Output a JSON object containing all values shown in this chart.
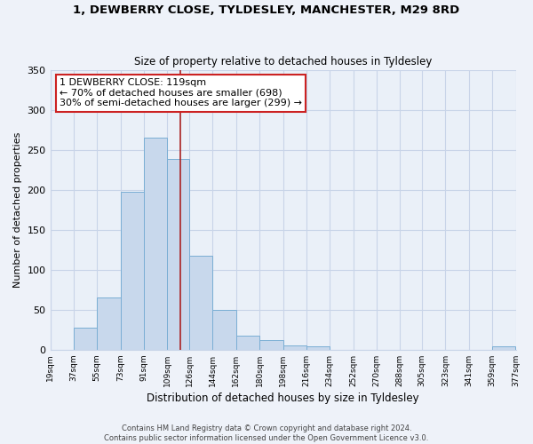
{
  "title": "1, DEWBERRY CLOSE, TYLDESLEY, MANCHESTER, M29 8RD",
  "subtitle": "Size of property relative to detached houses in Tyldesley",
  "xlabel": "Distribution of detached houses by size in Tyldesley",
  "ylabel": "Number of detached properties",
  "bar_color": "#c8d8ec",
  "bar_edge_color": "#7aaed4",
  "bin_labels": [
    "19sqm",
    "37sqm",
    "55sqm",
    "73sqm",
    "91sqm",
    "109sqm",
    "126sqm",
    "144sqm",
    "162sqm",
    "180sqm",
    "198sqm",
    "216sqm",
    "234sqm",
    "252sqm",
    "270sqm",
    "288sqm",
    "305sqm",
    "323sqm",
    "341sqm",
    "359sqm",
    "377sqm"
  ],
  "bar_heights": [
    0,
    28,
    65,
    197,
    265,
    238,
    117,
    50,
    18,
    12,
    5,
    4,
    0,
    0,
    0,
    0,
    0,
    0,
    0,
    4,
    0
  ],
  "bin_edges": [
    19,
    37,
    55,
    73,
    91,
    109,
    126,
    144,
    162,
    180,
    198,
    216,
    234,
    252,
    270,
    288,
    305,
    323,
    341,
    359,
    377
  ],
  "vline_x": 119,
  "vline_color": "#aa2222",
  "ylim": [
    0,
    350
  ],
  "yticks": [
    0,
    50,
    100,
    150,
    200,
    250,
    300,
    350
  ],
  "annotation_text": "1 DEWBERRY CLOSE: 119sqm\n← 70% of detached houses are smaller (698)\n30% of semi-detached houses are larger (299) →",
  "footer_line1": "Contains HM Land Registry data © Crown copyright and database right 2024.",
  "footer_line2": "Contains public sector information licensed under the Open Government Licence v3.0.",
  "background_color": "#eef2f9",
  "plot_bg_color": "#eaf0f8",
  "grid_color": "#c8d4e8",
  "title_fontsize": 9.5,
  "subtitle_fontsize": 8.5,
  "xlabel_fontsize": 8.5,
  "ylabel_fontsize": 8,
  "tick_label_fontsize": 6.5,
  "annotation_fontsize": 8,
  "footer_fontsize": 6
}
